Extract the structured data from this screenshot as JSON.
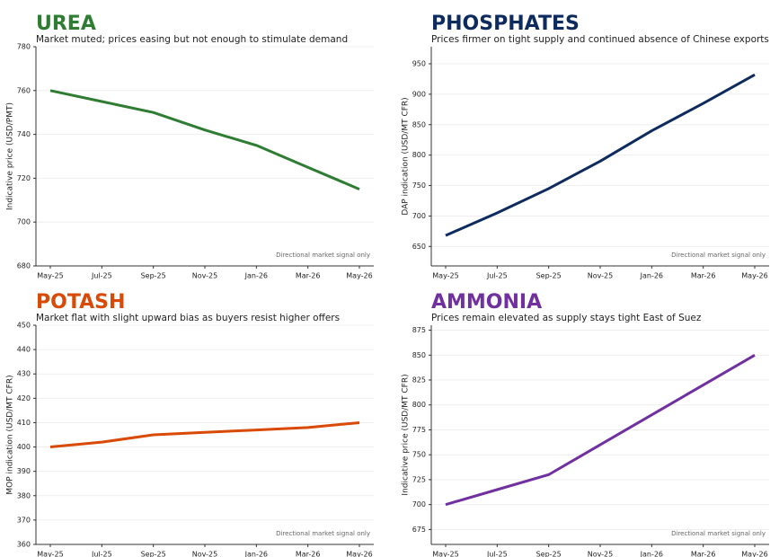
{
  "chart_data": [
    {
      "type": "line",
      "title": "UREA",
      "subtitle": "Market muted; prices easing but not enough to stimulate demand",
      "ylabel": "Indicative price (USD/PMT)",
      "annotation": "Directional market signal only",
      "categories": [
        "May-25",
        "Jul-25",
        "Sep-25",
        "Nov-25",
        "Jan-26",
        "Mar-26",
        "May-26"
      ],
      "values": [
        760,
        755,
        750,
        742,
        735,
        725,
        715
      ],
      "color": "#2e7d32",
      "ylim": [
        680,
        780
      ],
      "yticks": [
        680,
        700,
        720,
        740,
        760,
        780
      ],
      "grid": true
    },
    {
      "type": "line",
      "title": "PHOSPHATES",
      "subtitle": "Prices firmer on tight supply and continued absence of Chinese exports",
      "ylabel": "DAP indication (USD/MT CFR)",
      "annotation": "Directional market signal only",
      "categories": [
        "May-25",
        "Jul-25",
        "Sep-25",
        "Nov-25",
        "Jan-26",
        "Mar-26",
        "May-26"
      ],
      "values": [
        668,
        705,
        745,
        790,
        840,
        885,
        932
      ],
      "color": "#0d2b5e",
      "ylim": [
        618,
        978
      ],
      "yticks": [
        650,
        700,
        750,
        800,
        850,
        900,
        950
      ],
      "grid": true
    },
    {
      "type": "line",
      "title": "POTASH",
      "subtitle": "Market flat with slight upward bias as buyers resist higher offers",
      "ylabel": "MOP indication (USD/MT CFR)",
      "annotation": "Directional market signal only",
      "categories": [
        "May-25",
        "Jul-25",
        "Sep-25",
        "Nov-25",
        "Jan-26",
        "Mar-26",
        "May-26"
      ],
      "values": [
        400,
        402,
        405,
        406,
        407,
        408,
        410
      ],
      "color": "#d84a05",
      "ylim": [
        360,
        450
      ],
      "yticks": [
        360,
        370,
        380,
        390,
        400,
        410,
        420,
        430,
        440,
        450
      ],
      "grid": true
    },
    {
      "type": "line",
      "title": "AMMONIA",
      "subtitle": "Prices remain elevated as supply stays tight East of Suez",
      "ylabel": "Indicative price (USD/MT CFR)",
      "annotation": "Directional market signal only",
      "categories": [
        "May-25",
        "Jul-25",
        "Sep-25",
        "Nov-25",
        "Jan-26",
        "Mar-26",
        "May-26"
      ],
      "values": [
        700,
        715,
        730,
        760,
        790,
        820,
        850
      ],
      "color": "#7030a0",
      "ylim": [
        660,
        880
      ],
      "yticks": [
        675,
        700,
        725,
        750,
        775,
        800,
        825,
        850,
        875
      ],
      "grid": true
    }
  ]
}
